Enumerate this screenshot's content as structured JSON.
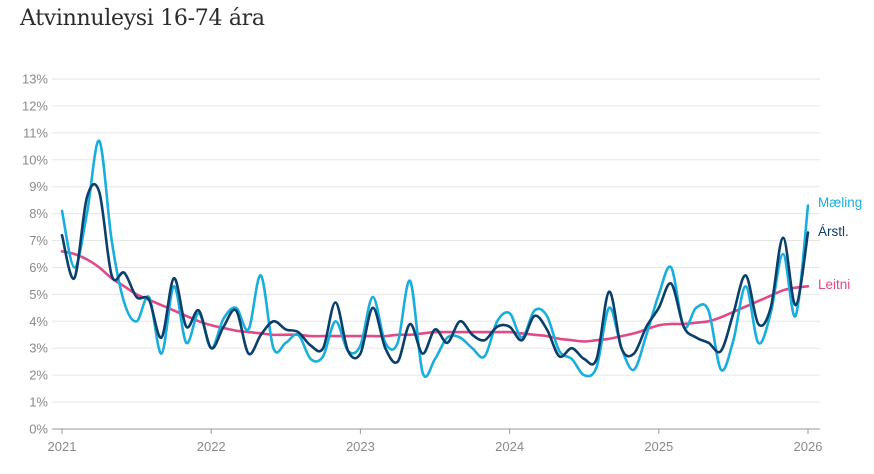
{
  "chart_data": {
    "type": "line",
    "title": "Atvinnuleysi 16-74 ára",
    "xlabel": "",
    "ylabel": "",
    "ylim": [
      0,
      13
    ],
    "xlim": [
      2021,
      2026
    ],
    "y_ticks": [
      "0%",
      "1%",
      "2%",
      "3%",
      "4%",
      "5%",
      "6%",
      "7%",
      "8%",
      "9%",
      "10%",
      "11%",
      "12%",
      "13%"
    ],
    "x_ticks": [
      "2021",
      "2022",
      "2023",
      "2024",
      "2025",
      "2026"
    ],
    "grid": true,
    "legend": "labels at right end of lines",
    "series": [
      {
        "name": "Mæling",
        "color": "#1aaedc",
        "width": 2.6,
        "points": [
          [
            2021.0,
            8.1
          ],
          [
            2021.083,
            6.0
          ],
          [
            2021.167,
            8.0
          ],
          [
            2021.25,
            10.7
          ],
          [
            2021.333,
            7.0
          ],
          [
            2021.417,
            4.7
          ],
          [
            2021.5,
            4.0
          ],
          [
            2021.583,
            4.9
          ],
          [
            2021.667,
            2.8
          ],
          [
            2021.75,
            5.3
          ],
          [
            2021.833,
            3.2
          ],
          [
            2021.917,
            4.3
          ],
          [
            2022.0,
            3.0
          ],
          [
            2022.083,
            4.1
          ],
          [
            2022.167,
            4.5
          ],
          [
            2022.25,
            3.7
          ],
          [
            2022.333,
            5.7
          ],
          [
            2022.417,
            3.0
          ],
          [
            2022.5,
            3.2
          ],
          [
            2022.583,
            3.5
          ],
          [
            2022.667,
            2.6
          ],
          [
            2022.75,
            2.7
          ],
          [
            2022.833,
            4.0
          ],
          [
            2022.917,
            2.9
          ],
          [
            2023.0,
            3.1
          ],
          [
            2023.083,
            4.9
          ],
          [
            2023.167,
            3.2
          ],
          [
            2023.25,
            3.2
          ],
          [
            2023.333,
            5.5
          ],
          [
            2023.417,
            2.1
          ],
          [
            2023.5,
            2.6
          ],
          [
            2023.583,
            3.4
          ],
          [
            2023.667,
            3.4
          ],
          [
            2023.75,
            3.0
          ],
          [
            2023.833,
            2.7
          ],
          [
            2023.917,
            4.0
          ],
          [
            2024.0,
            4.3
          ],
          [
            2024.083,
            3.4
          ],
          [
            2024.167,
            4.4
          ],
          [
            2024.25,
            4.2
          ],
          [
            2024.333,
            2.9
          ],
          [
            2024.417,
            2.6
          ],
          [
            2024.5,
            2.0
          ],
          [
            2024.583,
            2.3
          ],
          [
            2024.667,
            4.5
          ],
          [
            2024.75,
            3.0
          ],
          [
            2024.833,
            2.2
          ],
          [
            2024.917,
            3.5
          ],
          [
            2025.0,
            5.0
          ],
          [
            2025.083,
            6.0
          ],
          [
            2025.167,
            3.8
          ],
          [
            2025.25,
            4.5
          ],
          [
            2025.333,
            4.4
          ],
          [
            2025.417,
            2.2
          ],
          [
            2025.5,
            3.3
          ],
          [
            2025.583,
            5.3
          ],
          [
            2025.667,
            3.2
          ],
          [
            2025.75,
            4.3
          ],
          [
            2025.833,
            6.5
          ],
          [
            2025.917,
            4.2
          ],
          [
            2026.0,
            8.3
          ]
        ]
      },
      {
        "name": "Árstl.",
        "color": "#0a3f6b",
        "width": 2.6,
        "points": [
          [
            2021.0,
            7.2
          ],
          [
            2021.083,
            5.6
          ],
          [
            2021.167,
            8.6
          ],
          [
            2021.25,
            8.8
          ],
          [
            2021.333,
            5.7
          ],
          [
            2021.417,
            5.8
          ],
          [
            2021.5,
            4.9
          ],
          [
            2021.583,
            4.8
          ],
          [
            2021.667,
            3.4
          ],
          [
            2021.75,
            5.6
          ],
          [
            2021.833,
            3.8
          ],
          [
            2021.917,
            4.4
          ],
          [
            2022.0,
            3.0
          ],
          [
            2022.083,
            3.8
          ],
          [
            2022.167,
            4.4
          ],
          [
            2022.25,
            2.8
          ],
          [
            2022.333,
            3.5
          ],
          [
            2022.417,
            4.0
          ],
          [
            2022.5,
            3.7
          ],
          [
            2022.583,
            3.6
          ],
          [
            2022.667,
            3.1
          ],
          [
            2022.75,
            3.0
          ],
          [
            2022.833,
            4.7
          ],
          [
            2022.917,
            2.9
          ],
          [
            2023.0,
            2.8
          ],
          [
            2023.083,
            4.5
          ],
          [
            2023.167,
            3.0
          ],
          [
            2023.25,
            2.5
          ],
          [
            2023.333,
            3.9
          ],
          [
            2023.417,
            2.8
          ],
          [
            2023.5,
            3.7
          ],
          [
            2023.583,
            3.2
          ],
          [
            2023.667,
            4.0
          ],
          [
            2023.75,
            3.5
          ],
          [
            2023.833,
            3.3
          ],
          [
            2023.917,
            3.8
          ],
          [
            2024.0,
            3.8
          ],
          [
            2024.083,
            3.3
          ],
          [
            2024.167,
            4.2
          ],
          [
            2024.25,
            3.7
          ],
          [
            2024.333,
            2.7
          ],
          [
            2024.417,
            3.0
          ],
          [
            2024.5,
            2.6
          ],
          [
            2024.583,
            2.6
          ],
          [
            2024.667,
            5.1
          ],
          [
            2024.75,
            3.0
          ],
          [
            2024.833,
            2.8
          ],
          [
            2024.917,
            3.8
          ],
          [
            2025.0,
            4.5
          ],
          [
            2025.083,
            5.4
          ],
          [
            2025.167,
            3.8
          ],
          [
            2025.25,
            3.4
          ],
          [
            2025.333,
            3.2
          ],
          [
            2025.417,
            2.9
          ],
          [
            2025.5,
            4.3
          ],
          [
            2025.583,
            5.7
          ],
          [
            2025.667,
            3.9
          ],
          [
            2025.75,
            4.5
          ],
          [
            2025.833,
            7.1
          ],
          [
            2025.917,
            4.6
          ],
          [
            2026.0,
            7.3
          ]
        ]
      },
      {
        "name": "Leitni",
        "color": "#e04a86",
        "width": 2.6,
        "points": [
          [
            2021.0,
            6.6
          ],
          [
            2021.083,
            6.5
          ],
          [
            2021.167,
            6.3
          ],
          [
            2021.25,
            6.0
          ],
          [
            2021.333,
            5.6
          ],
          [
            2021.417,
            5.3
          ],
          [
            2021.5,
            5.0
          ],
          [
            2021.583,
            4.8
          ],
          [
            2021.667,
            4.6
          ],
          [
            2021.75,
            4.4
          ],
          [
            2021.833,
            4.2
          ],
          [
            2021.917,
            4.0
          ],
          [
            2022.0,
            3.85
          ],
          [
            2022.083,
            3.75
          ],
          [
            2022.167,
            3.65
          ],
          [
            2022.25,
            3.6
          ],
          [
            2022.333,
            3.55
          ],
          [
            2022.417,
            3.5
          ],
          [
            2022.5,
            3.5
          ],
          [
            2022.583,
            3.5
          ],
          [
            2022.667,
            3.45
          ],
          [
            2022.75,
            3.45
          ],
          [
            2022.833,
            3.45
          ],
          [
            2022.917,
            3.45
          ],
          [
            2023.0,
            3.45
          ],
          [
            2023.083,
            3.45
          ],
          [
            2023.167,
            3.45
          ],
          [
            2023.25,
            3.5
          ],
          [
            2023.333,
            3.5
          ],
          [
            2023.417,
            3.55
          ],
          [
            2023.5,
            3.6
          ],
          [
            2023.583,
            3.6
          ],
          [
            2023.667,
            3.6
          ],
          [
            2023.75,
            3.6
          ],
          [
            2023.833,
            3.6
          ],
          [
            2023.917,
            3.6
          ],
          [
            2024.0,
            3.6
          ],
          [
            2024.083,
            3.55
          ],
          [
            2024.167,
            3.5
          ],
          [
            2024.25,
            3.45
          ],
          [
            2024.333,
            3.35
          ],
          [
            2024.417,
            3.3
          ],
          [
            2024.5,
            3.25
          ],
          [
            2024.583,
            3.3
          ],
          [
            2024.667,
            3.35
          ],
          [
            2024.75,
            3.45
          ],
          [
            2024.833,
            3.55
          ],
          [
            2024.917,
            3.7
          ],
          [
            2025.0,
            3.85
          ],
          [
            2025.083,
            3.9
          ],
          [
            2025.167,
            3.9
          ],
          [
            2025.25,
            3.95
          ],
          [
            2025.333,
            4.0
          ],
          [
            2025.417,
            4.15
          ],
          [
            2025.5,
            4.35
          ],
          [
            2025.583,
            4.55
          ],
          [
            2025.667,
            4.75
          ],
          [
            2025.75,
            4.95
          ],
          [
            2025.833,
            5.15
          ],
          [
            2025.917,
            5.25
          ],
          [
            2026.0,
            5.3
          ]
        ]
      }
    ]
  }
}
